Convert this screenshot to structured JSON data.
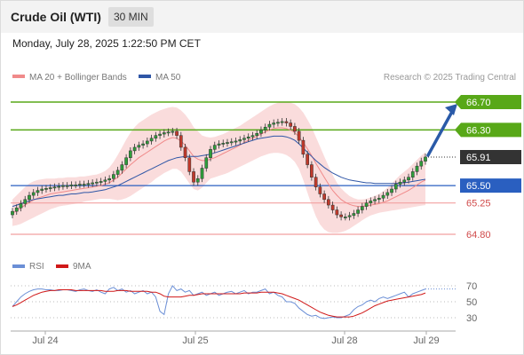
{
  "header": {
    "title": "Crude Oil (WTI)",
    "interval": "30 MIN"
  },
  "timestamp": "Monday, July 28, 2025 1:22:50 PM CET",
  "legend": {
    "ma20_label": "MA 20 + Bollinger Bands",
    "ma50_label": "MA 50",
    "copyright": "Research © 2025 Trading Central",
    "rsi_label": "RSI",
    "rsi_ma_label": "9MA"
  },
  "colors": {
    "ma20": "#f08a8a",
    "ma50": "#2f56a6",
    "bollinger_fill": "#fadcdc",
    "candle_up": "#2e9d3a",
    "candle_down": "#c0392b",
    "target_green": "#58a818",
    "support_blue": "#2a5fc0",
    "pivot_line": "#f2a0a0",
    "current_price": "#333333",
    "arrow": "#2a5aa8",
    "rsi": "#6b8fd6",
    "rsi_ma": "#d01818"
  },
  "chart_data": [
    {
      "type": "candlestick",
      "title": "Crude Oil (WTI)",
      "ylim": [
        64.6,
        66.95
      ],
      "x_tick_labels": [
        "Jul 24",
        "Jul 25",
        "Jul 28",
        "Jul 29"
      ],
      "levels": [
        {
          "value": 66.7,
          "label": "66.70",
          "kind": "target"
        },
        {
          "value": 66.3,
          "label": "66.30",
          "kind": "target"
        },
        {
          "value": 65.91,
          "label": "65.91",
          "kind": "current"
        },
        {
          "value": 65.5,
          "label": "65.50",
          "kind": "pivot"
        },
        {
          "value": 65.25,
          "label": "65.25",
          "kind": "support"
        },
        {
          "value": 64.8,
          "label": "64.80",
          "kind": "support"
        }
      ],
      "close": [
        65.13,
        65.18,
        65.24,
        65.3,
        65.36,
        65.4,
        65.43,
        65.45,
        65.46,
        65.47,
        65.48,
        65.49,
        65.5,
        65.5,
        65.51,
        65.51,
        65.52,
        65.52,
        65.53,
        65.54,
        65.55,
        65.56,
        65.58,
        65.6,
        65.66,
        65.72,
        65.8,
        65.9,
        66.0,
        66.05,
        66.08,
        66.1,
        66.14,
        66.18,
        66.22,
        66.24,
        66.26,
        66.27,
        66.28,
        66.22,
        66.05,
        65.9,
        65.7,
        65.55,
        65.6,
        65.75,
        65.9,
        66.02,
        66.08,
        66.1,
        66.11,
        66.12,
        66.13,
        66.14,
        66.16,
        66.18,
        66.2,
        66.22,
        66.25,
        66.3,
        66.34,
        66.38,
        66.4,
        66.41,
        66.42,
        66.4,
        66.35,
        66.28,
        66.15,
        65.95,
        65.8,
        65.62,
        65.48,
        65.38,
        65.3,
        65.22,
        65.15,
        65.08,
        65.05,
        65.05,
        65.07,
        65.1,
        65.15,
        65.2,
        65.25,
        65.28,
        65.3,
        65.32,
        65.36,
        65.4,
        65.45,
        65.52,
        65.55,
        65.58,
        65.62,
        65.7,
        65.78,
        65.85,
        65.91
      ],
      "ma20": [
        65.1,
        65.14,
        65.18,
        65.22,
        65.26,
        65.29,
        65.32,
        65.34,
        65.36,
        65.38,
        65.39,
        65.4,
        65.41,
        65.42,
        65.43,
        65.44,
        65.45,
        65.46,
        65.47,
        65.48,
        65.49,
        65.5,
        65.52,
        65.54,
        65.58,
        65.62,
        65.68,
        65.74,
        65.8,
        65.85,
        65.9,
        65.94,
        65.98,
        66.02,
        66.06,
        66.1,
        66.14,
        66.17,
        66.19,
        66.18,
        66.14,
        66.08,
        66.0,
        65.92,
        65.88,
        65.86,
        65.86,
        65.88,
        65.9,
        65.93,
        65.96,
        65.99,
        66.02,
        66.05,
        66.08,
        66.12,
        66.15,
        66.18,
        66.21,
        66.24,
        66.27,
        66.3,
        66.32,
        66.33,
        66.33,
        66.32,
        66.3,
        66.26,
        66.2,
        66.12,
        66.03,
        65.93,
        65.82,
        65.72,
        65.62,
        65.52,
        65.43,
        65.36,
        65.3,
        65.26,
        65.23,
        65.21,
        65.2,
        65.2,
        65.21,
        65.22,
        65.23,
        65.24,
        65.26,
        65.28,
        65.31,
        65.34,
        65.37,
        65.4,
        65.43,
        65.47,
        65.51,
        65.55,
        65.58
      ],
      "ma50": [
        65.2,
        65.22,
        65.24,
        65.26,
        65.28,
        65.3,
        65.31,
        65.32,
        65.33,
        65.34,
        65.35,
        65.36,
        65.36,
        65.37,
        65.38,
        65.38,
        65.39,
        65.4,
        65.4,
        65.41,
        65.42,
        65.43,
        65.44,
        65.46,
        65.48,
        65.5,
        65.53,
        65.56,
        65.59,
        65.62,
        65.65,
        65.68,
        65.71,
        65.74,
        65.77,
        65.8,
        65.83,
        65.86,
        65.88,
        65.9,
        65.91,
        65.92,
        65.92,
        65.92,
        65.92,
        65.93,
        65.94,
        65.95,
        65.97,
        65.99,
        66.01,
        66.03,
        66.05,
        66.07,
        66.09,
        66.11,
        66.13,
        66.15,
        66.17,
        66.18,
        66.19,
        66.2,
        66.21,
        66.21,
        66.21,
        66.2,
        66.18,
        66.15,
        66.1,
        66.04,
        65.98,
        65.92,
        65.86,
        65.81,
        65.76,
        65.72,
        65.68,
        65.65,
        65.62,
        65.6,
        65.58,
        65.57,
        65.56,
        65.55,
        65.54,
        65.54,
        65.53,
        65.53,
        65.53,
        65.53,
        65.53,
        65.53,
        65.54,
        65.54,
        65.55,
        65.56,
        65.57,
        65.58,
        65.59
      ],
      "bollinger_upper": [
        65.3,
        65.36,
        65.42,
        65.48,
        65.53,
        65.56,
        65.58,
        65.59,
        65.6,
        65.6,
        65.6,
        65.61,
        65.61,
        65.62,
        65.62,
        65.62,
        65.63,
        65.63,
        65.64,
        65.65,
        65.66,
        65.68,
        65.71,
        65.76,
        65.84,
        65.94,
        66.05,
        66.16,
        66.26,
        66.34,
        66.4,
        66.44,
        66.48,
        66.52,
        66.55,
        66.58,
        66.6,
        66.62,
        66.63,
        66.62,
        66.58,
        66.52,
        66.44,
        66.34,
        66.28,
        66.22,
        66.2,
        66.19,
        66.2,
        66.22,
        66.24,
        66.27,
        66.3,
        66.33,
        66.36,
        66.4,
        66.44,
        66.48,
        66.52,
        66.56,
        66.6,
        66.64,
        66.67,
        66.69,
        66.7,
        66.7,
        66.69,
        66.67,
        66.62,
        66.55,
        66.45,
        66.34,
        66.2,
        66.06,
        65.92,
        65.78,
        65.65,
        65.54,
        65.46,
        65.4,
        65.35,
        65.32,
        65.3,
        65.3,
        65.31,
        65.33,
        65.35,
        65.38,
        65.42,
        65.47,
        65.53,
        65.59,
        65.65,
        65.7,
        65.75,
        65.81,
        65.87,
        65.93,
        65.98
      ],
      "bollinger_lower": [
        64.92,
        64.93,
        64.95,
        64.98,
        65.01,
        65.04,
        65.07,
        65.1,
        65.13,
        65.16,
        65.18,
        65.2,
        65.21,
        65.22,
        65.23,
        65.24,
        65.25,
        65.27,
        65.28,
        65.29,
        65.3,
        65.31,
        65.31,
        65.31,
        65.3,
        65.29,
        65.3,
        65.32,
        65.35,
        65.39,
        65.43,
        65.47,
        65.51,
        65.55,
        65.6,
        65.64,
        65.68,
        65.71,
        65.74,
        65.74,
        65.7,
        65.62,
        65.53,
        65.45,
        65.43,
        65.47,
        65.54,
        65.6,
        65.62,
        65.64,
        65.66,
        65.68,
        65.71,
        65.74,
        65.77,
        65.8,
        65.83,
        65.86,
        65.89,
        65.92,
        65.94,
        65.96,
        65.97,
        65.97,
        65.96,
        65.94,
        65.9,
        65.84,
        65.74,
        65.58,
        65.4,
        65.22,
        65.06,
        64.94,
        64.87,
        64.83,
        64.82,
        64.82,
        64.83,
        64.85,
        64.88,
        64.92,
        64.96,
        65.0,
        65.04,
        65.07,
        65.09,
        65.11,
        65.12,
        65.13,
        65.14,
        65.15,
        65.16,
        65.17,
        65.18,
        65.19,
        65.2,
        65.21,
        65.22
      ],
      "arrow": {
        "from": 65.91,
        "to": 66.7
      }
    },
    {
      "type": "line",
      "series": [
        {
          "name": "RSI",
          "values": [
            44,
            50,
            56,
            60,
            63,
            65,
            66,
            66,
            65,
            65,
            64,
            64,
            65,
            65,
            64,
            63,
            65,
            66,
            64,
            63,
            65,
            62,
            60,
            66,
            68,
            64,
            66,
            62,
            64,
            60,
            62,
            64,
            60,
            62,
            56,
            38,
            34,
            60,
            70,
            64,
            66,
            62,
            64,
            58,
            60,
            62,
            58,
            60,
            62,
            58,
            60,
            62,
            63,
            60,
            62,
            64,
            60,
            62,
            62,
            64,
            66,
            60,
            62,
            58,
            56,
            50,
            50,
            48,
            42,
            38,
            34,
            32,
            33,
            30,
            29,
            30,
            31,
            30,
            30,
            32,
            34,
            40,
            44,
            46,
            50,
            52,
            50,
            54,
            56,
            54,
            56,
            58,
            60,
            62,
            56,
            60,
            62,
            64,
            66
          ]
        },
        {
          "name": "9MA",
          "values": [
            44,
            46,
            49,
            52,
            55,
            58,
            60,
            62,
            63,
            64,
            64,
            65,
            65,
            65,
            65,
            64,
            64,
            64,
            64,
            64,
            64,
            64,
            63,
            63,
            63,
            64,
            64,
            64,
            63,
            63,
            63,
            63,
            63,
            62,
            62,
            60,
            57,
            56,
            56,
            56,
            56,
            57,
            58,
            58,
            59,
            60,
            60,
            60,
            60,
            60,
            60,
            60,
            60,
            60,
            60,
            61,
            61,
            61,
            61,
            62,
            62,
            62,
            62,
            61,
            60,
            58,
            56,
            54,
            52,
            49,
            46,
            43,
            40,
            37,
            35,
            33,
            32,
            31,
            31,
            31,
            31,
            32,
            34,
            36,
            39,
            42,
            45,
            47,
            49,
            51,
            52,
            53,
            54,
            55,
            56,
            57,
            58,
            59,
            61
          ]
        }
      ],
      "y_tick_labels": [
        "70",
        "50",
        "30"
      ],
      "ylim": [
        22,
        80
      ]
    }
  ]
}
